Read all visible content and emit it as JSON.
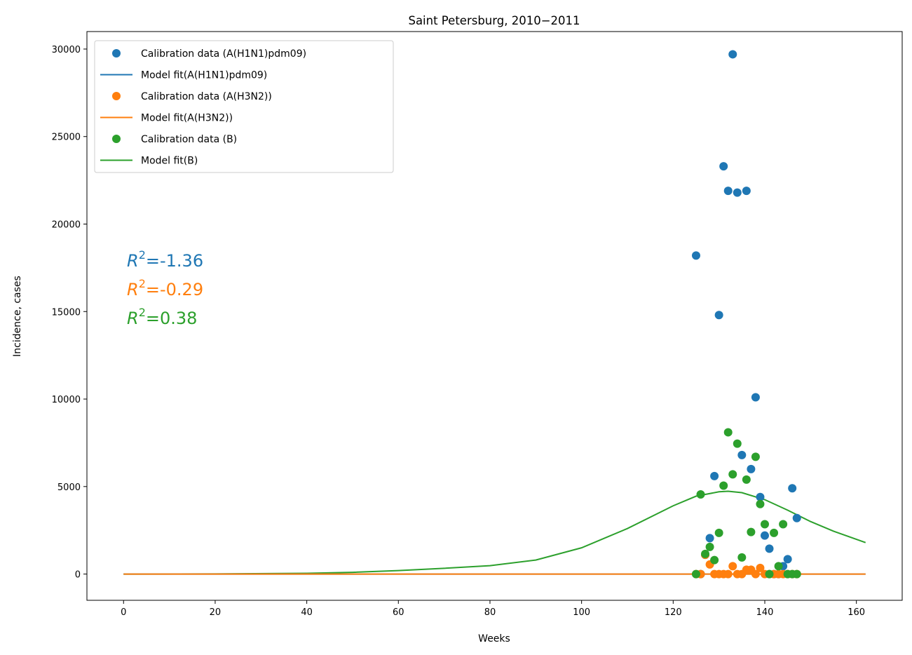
{
  "chart_data": {
    "type": "scatter",
    "title": "Saint Petersburg, 2010−2011",
    "xlabel": "Weeks",
    "ylabel": "Incidence, cases",
    "xlim": [
      -8,
      170
    ],
    "ylim": [
      -1500,
      31000
    ],
    "xticks": [
      0,
      20,
      40,
      60,
      80,
      100,
      120,
      140,
      160
    ],
    "yticks": [
      0,
      5000,
      10000,
      15000,
      20000,
      25000,
      30000
    ],
    "grid": false,
    "legend_position": "top-left",
    "colors": {
      "h1n1": "#1f77b4",
      "h3n2": "#ff7f0e",
      "b": "#2ca02c"
    },
    "series": [
      {
        "name": "Calibration data (A(H1N1)pdm09)",
        "kind": "points",
        "color": "#1f77b4",
        "x": [
          125,
          126,
          127,
          128,
          129,
          130,
          131,
          132,
          133,
          134,
          135,
          136,
          137,
          138,
          139,
          140,
          141,
          142,
          143,
          144,
          145,
          146,
          147
        ],
        "y": [
          18200,
          0,
          1100,
          2050,
          5600,
          14800,
          23300,
          21900,
          29700,
          21800,
          6800,
          21900,
          6000,
          10100,
          4400,
          2200,
          1450,
          0,
          0,
          450,
          850,
          4900,
          3200
        ]
      },
      {
        "name": "Model fit(A(H1N1)pdm09)",
        "kind": "line",
        "color": "#1f77b4",
        "x": [
          0,
          162
        ],
        "y": [
          0,
          0
        ]
      },
      {
        "name": "Calibration data (A(H3N2))",
        "kind": "points",
        "color": "#ff7f0e",
        "x": [
          125,
          126,
          127,
          128,
          129,
          130,
          131,
          132,
          133,
          134,
          135,
          136,
          137,
          138,
          139,
          140,
          141,
          142,
          143,
          144,
          145,
          146,
          147
        ],
        "y": [
          0,
          0,
          1100,
          550,
          0,
          0,
          0,
          0,
          450,
          0,
          0,
          250,
          250,
          0,
          350,
          0,
          0,
          0,
          0,
          0,
          0,
          0,
          0
        ]
      },
      {
        "name": "Model fit(A(H3N2))",
        "kind": "line",
        "color": "#ff7f0e",
        "x": [
          0,
          162
        ],
        "y": [
          0,
          0
        ]
      },
      {
        "name": "Calibration data (B)",
        "kind": "points",
        "color": "#2ca02c",
        "x": [
          125,
          126,
          127,
          128,
          129,
          130,
          131,
          132,
          133,
          134,
          135,
          136,
          137,
          138,
          139,
          140,
          141,
          142,
          143,
          144,
          145,
          146,
          147
        ],
        "y": [
          0,
          4550,
          1150,
          1550,
          800,
          2350,
          5050,
          8100,
          5700,
          7450,
          950,
          5400,
          2400,
          6700,
          4000,
          2850,
          0,
          2350,
          450,
          2850,
          0,
          0,
          0
        ]
      },
      {
        "name": "Model fit(B)",
        "kind": "line",
        "color": "#2ca02c",
        "x": [
          0,
          20,
          40,
          50,
          60,
          70,
          80,
          90,
          100,
          110,
          120,
          125,
          130,
          132,
          135,
          140,
          145,
          150,
          155,
          162
        ],
        "y": [
          0,
          8,
          45,
          100,
          200,
          330,
          480,
          800,
          1500,
          2600,
          3900,
          4450,
          4700,
          4730,
          4650,
          4250,
          3650,
          3000,
          2450,
          1800
        ]
      }
    ],
    "annotations": [
      {
        "prefix": "R",
        "sup": "2",
        "value": "=-1.36",
        "color": "#1f77b4"
      },
      {
        "prefix": "R",
        "sup": "2",
        "value": "=-0.29",
        "color": "#ff7f0e"
      },
      {
        "prefix": "R",
        "sup": "2",
        "value": "=0.38",
        "color": "#2ca02c"
      }
    ]
  }
}
